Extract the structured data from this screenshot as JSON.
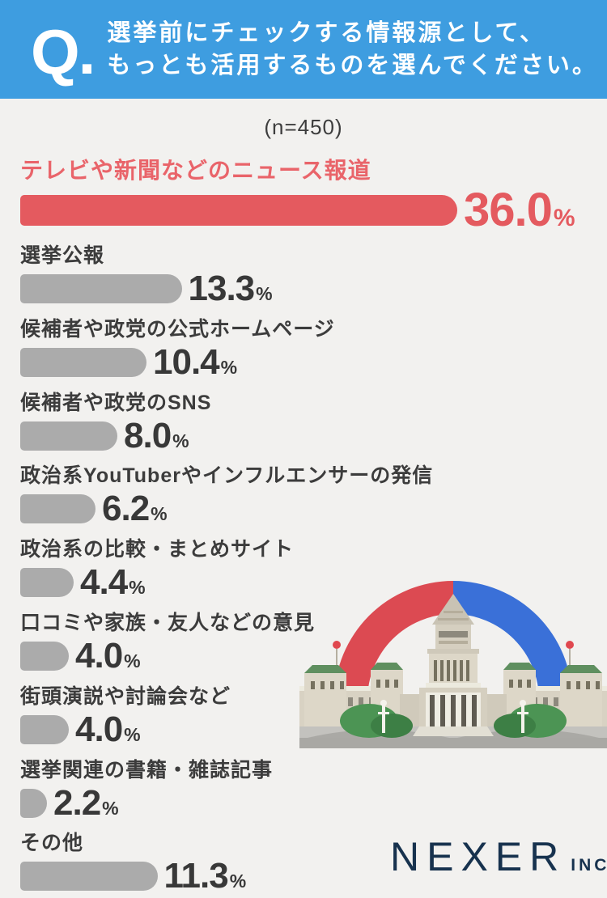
{
  "header": {
    "q_label": "Q.",
    "title_line1": "選挙前にチェックする情報源として、",
    "title_line2": "もっとも活用するものを選んでください。"
  },
  "sample_label": "(n=450)",
  "chart_data": {
    "type": "bar",
    "orientation": "horizontal",
    "unit": "%",
    "sample_size": 450,
    "title": "選挙前にチェックする情報源として、もっとも活用するものを選んでください。",
    "categories": [
      "テレビや新聞などのニュース報道",
      "選挙公報",
      "候補者や政党の公式ホームページ",
      "候補者や政党のSNS",
      "政治系YouTuberやインフルエンサーの発信",
      "政治系の比較・まとめサイト",
      "口コミや家族・友人などの意見",
      "街頭演説や討論会など",
      "選挙関連の書籍・雑誌記事",
      "その他"
    ],
    "values": [
      36.0,
      13.3,
      10.4,
      8.0,
      6.2,
      4.4,
      4.0,
      4.0,
      2.2,
      11.3
    ],
    "items": [
      {
        "label": "テレビや新聞などのニュース報道",
        "value": 36.0,
        "display": "36.0",
        "highlight": true
      },
      {
        "label": "選挙公報",
        "value": 13.3,
        "display": "13.3",
        "highlight": false
      },
      {
        "label": "候補者や政党の公式ホームページ",
        "value": 10.4,
        "display": "10.4",
        "highlight": false
      },
      {
        "label": "候補者や政党のSNS",
        "value": 8.0,
        "display": "8.0",
        "highlight": false
      },
      {
        "label": "政治系YouTuberやインフルエンサーの発信",
        "value": 6.2,
        "display": "6.2",
        "highlight": false
      },
      {
        "label": "政治系の比較・まとめサイト",
        "value": 4.4,
        "display": "4.4",
        "highlight": false
      },
      {
        "label": "口コミや家族・友人などの意見",
        "value": 4.0,
        "display": "4.0",
        "highlight": false
      },
      {
        "label": "街頭演説や討論会など",
        "value": 4.0,
        "display": "4.0",
        "highlight": false
      },
      {
        "label": "選挙関連の書籍・雑誌記事",
        "value": 2.2,
        "display": "2.2",
        "highlight": false
      },
      {
        "label": "その他",
        "value": 11.3,
        "display": "11.3",
        "highlight": false
      }
    ],
    "highlight_color": "#e45a5f",
    "bar_color": "#ababab",
    "legend": "none",
    "grid": false
  },
  "logo": {
    "company": "NEXER",
    "suffix": "INC."
  },
  "colors": {
    "header_bg": "#3e9de0",
    "background": "#f2f1ef",
    "text": "#3c3c3c",
    "accent_red": "#e45a5f",
    "logo_navy": "#17324e",
    "arch_red": "#dc4a52",
    "arch_blue": "#3a70d8"
  }
}
